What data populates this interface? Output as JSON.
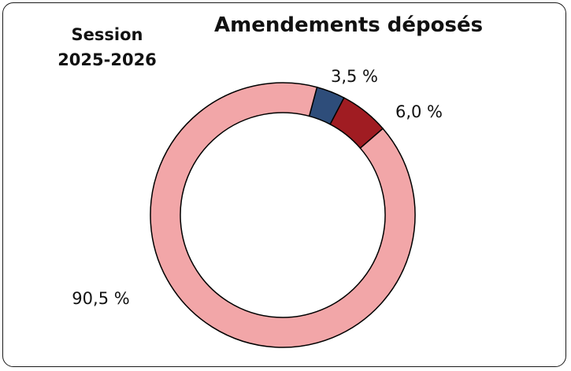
{
  "chart_data": {
    "type": "pie",
    "title": "Amendements déposés",
    "subtitle": [
      "Session",
      "2025-2026"
    ],
    "slices": [
      {
        "value": 3.5,
        "label": "3,5 %",
        "color": "#2e4d7a"
      },
      {
        "value": 6.0,
        "label": "6,0 %",
        "color": "#a01c22"
      },
      {
        "value": 90.5,
        "label": "90,5 %",
        "color": "#f2a6a8"
      }
    ],
    "donut": true,
    "legend": "none"
  }
}
